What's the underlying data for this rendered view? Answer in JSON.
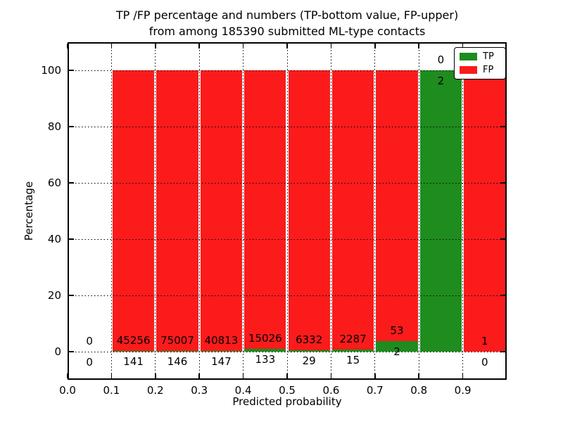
{
  "title": {
    "line1": "TP /FP percentage and numbers (TP-bottom value, FP-upper)",
    "line2": "from among 185390 submitted ML-type contacts"
  },
  "axes": {
    "xlabel": "Predicted probability",
    "ylabel": "Percentage",
    "x_tick_labels": [
      "0.0",
      "0.1",
      "0.2",
      "0.3",
      "0.4",
      "0.5",
      "0.6",
      "0.7",
      "0.8",
      "0.9"
    ],
    "y_tick_labels": [
      "0",
      "20",
      "40",
      "60",
      "80",
      "100"
    ]
  },
  "legend": {
    "items": [
      {
        "label": "TP",
        "color": "#1e8c1e"
      },
      {
        "label": "FP",
        "color": "#fb1b1b"
      }
    ]
  },
  "colors": {
    "tp": "#1e8c1e",
    "fp": "#fb1b1b",
    "background": "#ffffff",
    "text": "#000000",
    "grid": "#000000"
  },
  "chart_data": {
    "type": "bar",
    "stacking": "percentage",
    "title": "TP /FP percentage and numbers (TP-bottom value, FP-upper) from among 185390 submitted ML-type contacts",
    "total_submitted_contacts": 185390,
    "xlabel": "Predicted probability",
    "ylabel": "Percentage",
    "xlim": [
      0.0,
      1.0
    ],
    "ylim": [
      -10,
      110
    ],
    "x_ticks": [
      0.0,
      0.1,
      0.2,
      0.3,
      0.4,
      0.5,
      0.6,
      0.7,
      0.8,
      0.9
    ],
    "y_ticks": [
      0,
      20,
      40,
      60,
      80,
      100
    ],
    "grid": "dotted",
    "legend_position": "upper right",
    "series_names": [
      "TP",
      "FP"
    ],
    "bins": [
      {
        "x_start": 0.0,
        "x_end": 0.1,
        "tp_count": 0,
        "fp_count": 0,
        "tp_pct": 0.0,
        "fp_pct": 0.0
      },
      {
        "x_start": 0.1,
        "x_end": 0.2,
        "tp_count": 141,
        "fp_count": 45256,
        "tp_pct": 0.31,
        "fp_pct": 99.69
      },
      {
        "x_start": 0.2,
        "x_end": 0.3,
        "tp_count": 146,
        "fp_count": 75007,
        "tp_pct": 0.19,
        "fp_pct": 99.81
      },
      {
        "x_start": 0.3,
        "x_end": 0.4,
        "tp_count": 147,
        "fp_count": 40813,
        "tp_pct": 0.36,
        "fp_pct": 99.64
      },
      {
        "x_start": 0.4,
        "x_end": 0.5,
        "tp_count": 133,
        "fp_count": 15026,
        "tp_pct": 0.88,
        "fp_pct": 99.12
      },
      {
        "x_start": 0.5,
        "x_end": 0.6,
        "tp_count": 29,
        "fp_count": 6332,
        "tp_pct": 0.46,
        "fp_pct": 99.54
      },
      {
        "x_start": 0.6,
        "x_end": 0.7,
        "tp_count": 15,
        "fp_count": 2287,
        "tp_pct": 0.65,
        "fp_pct": 99.35
      },
      {
        "x_start": 0.7,
        "x_end": 0.8,
        "tp_count": 2,
        "fp_count": 53,
        "tp_pct": 3.64,
        "fp_pct": 96.36
      },
      {
        "x_start": 0.8,
        "x_end": 0.9,
        "tp_count": 2,
        "fp_count": 0,
        "tp_pct": 100.0,
        "fp_pct": 0.0
      },
      {
        "x_start": 0.9,
        "x_end": 1.0,
        "tp_count": 0,
        "fp_count": 1,
        "tp_pct": 0.0,
        "fp_pct": 100.0
      }
    ]
  }
}
